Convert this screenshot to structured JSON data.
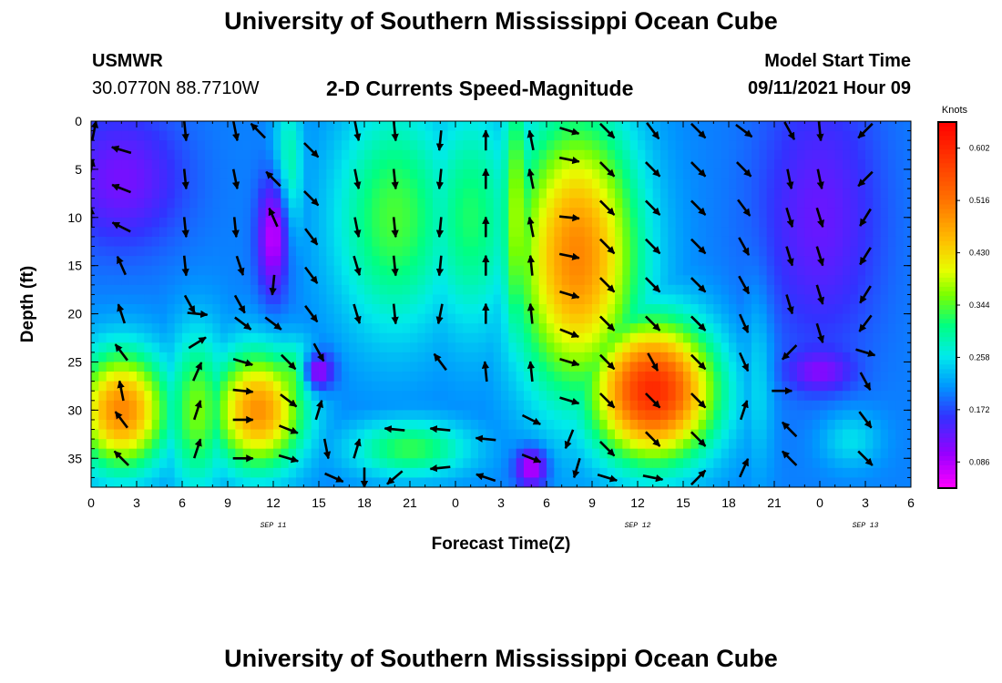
{
  "header": {
    "title": "University of Southern Mississippi Ocean Cube",
    "station": "USMWR",
    "coords": "30.0770N  88.7710W",
    "subtitle": "2-D Currents Speed-Magnitude",
    "model_start_label": "Model Start Time",
    "model_start_value": "09/11/2021 Hour 09"
  },
  "footer": {
    "title": "University of Southern Mississippi Ocean Cube"
  },
  "chart_data": {
    "type": "heatmap",
    "xlabel": "Forecast Time(Z)",
    "ylabel": "Depth (ft)",
    "x_ticks": [
      "0",
      "3",
      "6",
      "9",
      "12",
      "15",
      "18",
      "21",
      "0",
      "3",
      "6",
      "9",
      "12",
      "15",
      "18",
      "21",
      "0",
      "3",
      "6"
    ],
    "date_labels": [
      {
        "text": "SEP 11",
        "at_tick": 4
      },
      {
        "text": "SEP 12",
        "at_tick": 12
      },
      {
        "text": "SEP 13",
        "at_tick": 17
      }
    ],
    "x_range": [
      0,
      54
    ],
    "y_ticks": [
      0,
      5,
      10,
      15,
      20,
      25,
      30,
      35
    ],
    "y_range": [
      0,
      38
    ],
    "y_inverted": true,
    "colorbar": {
      "unit": "Knots",
      "ticks": [
        "0.602",
        "0.516",
        "0.430",
        "0.344",
        "0.258",
        "0.172",
        "0.086"
      ],
      "range": [
        0.043,
        0.645
      ]
    },
    "speed_field": {
      "description_units": "knots",
      "hot_spots": [
        {
          "x": 2,
          "y": 30,
          "r_x": 3,
          "r_y": 6,
          "v": 0.5
        },
        {
          "x": 11,
          "y": 30,
          "r_x": 3,
          "r_y": 6,
          "v": 0.49
        },
        {
          "x": 7,
          "y": 30,
          "r_x": 2,
          "r_y": 8,
          "v": 0.36
        },
        {
          "x": 13,
          "y": 27,
          "r_x": 2,
          "r_y": 4,
          "v": 0.36
        },
        {
          "x": 20,
          "y": 10,
          "r_x": 4,
          "r_y": 12,
          "v": 0.34
        },
        {
          "x": 25,
          "y": 10,
          "r_x": 3,
          "r_y": 12,
          "v": 0.32
        },
        {
          "x": 21,
          "y": 34,
          "r_x": 4,
          "r_y": 3,
          "v": 0.33
        },
        {
          "x": 13,
          "y": 5,
          "r_x": 1,
          "r_y": 8,
          "v": 0.3
        },
        {
          "x": 32,
          "y": 14,
          "r_x": 4,
          "r_y": 14,
          "v": 0.5
        },
        {
          "x": 37,
          "y": 28,
          "r_x": 4,
          "r_y": 7,
          "v": 0.6
        },
        {
          "x": 28,
          "y": 10,
          "r_x": 1,
          "r_y": 14,
          "v": 0.38
        },
        {
          "x": 44,
          "y": 26,
          "r_x": 1,
          "r_y": 10,
          "v": 0.26
        },
        {
          "x": 50,
          "y": 33,
          "r_x": 2,
          "r_y": 3,
          "v": 0.26
        }
      ],
      "low_spots": [
        {
          "x": 2,
          "y": 6,
          "r_x": 4,
          "r_y": 7,
          "v": 0.11
        },
        {
          "x": 12,
          "y": 12,
          "r_x": 1,
          "r_y": 6,
          "v": 0.06
        },
        {
          "x": 15,
          "y": 26,
          "r_x": 1,
          "r_y": 2,
          "v": 0.08
        },
        {
          "x": 29,
          "y": 36,
          "r_x": 1,
          "r_y": 2,
          "v": 0.06
        },
        {
          "x": 48,
          "y": 10,
          "r_x": 4,
          "r_y": 14,
          "v": 0.12
        },
        {
          "x": 48,
          "y": 26,
          "r_x": 2,
          "r_y": 2,
          "v": 0.1
        }
      ]
    },
    "vectors": [
      {
        "x": 0.2,
        "y": 1,
        "u": 0.2,
        "v": -1
      },
      {
        "x": 0,
        "y": 5,
        "u": 0.2,
        "v": -1
      },
      {
        "x": 0,
        "y": 10,
        "u": 0,
        "v": -1
      },
      {
        "x": 2,
        "y": 3,
        "u": -1,
        "v": -0.3
      },
      {
        "x": 2,
        "y": 7,
        "u": -1,
        "v": -0.4
      },
      {
        "x": 2,
        "y": 11,
        "u": -1,
        "v": -0.5
      },
      {
        "x": 2,
        "y": 15,
        "u": -0.4,
        "v": -0.9
      },
      {
        "x": 2,
        "y": 20,
        "u": -0.3,
        "v": -0.9
      },
      {
        "x": 2,
        "y": 24,
        "u": -0.6,
        "v": -0.8
      },
      {
        "x": 2,
        "y": 28,
        "u": -0.2,
        "v": -1
      },
      {
        "x": 2,
        "y": 31,
        "u": -0.6,
        "v": -0.8
      },
      {
        "x": 2,
        "y": 35,
        "u": -0.7,
        "v": -0.7
      },
      {
        "x": 6.2,
        "y": 1,
        "u": 0.1,
        "v": 1
      },
      {
        "x": 6.2,
        "y": 6,
        "u": 0.1,
        "v": 1
      },
      {
        "x": 6.2,
        "y": 11,
        "u": 0.1,
        "v": 1
      },
      {
        "x": 6.2,
        "y": 15,
        "u": 0.1,
        "v": 1
      },
      {
        "x": 6.5,
        "y": 19,
        "u": 0.5,
        "v": 0.9
      },
      {
        "x": 7,
        "y": 20,
        "u": 1,
        "v": 0.1
      },
      {
        "x": 7,
        "y": 23,
        "u": 0.8,
        "v": -0.5
      },
      {
        "x": 7,
        "y": 26,
        "u": 0.4,
        "v": -0.9
      },
      {
        "x": 7,
        "y": 30,
        "u": 0.3,
        "v": -0.9
      },
      {
        "x": 7,
        "y": 34,
        "u": 0.3,
        "v": -0.9
      },
      {
        "x": 9.5,
        "y": 1,
        "u": 0.2,
        "v": 1
      },
      {
        "x": 9.5,
        "y": 6,
        "u": 0.2,
        "v": 1
      },
      {
        "x": 9.5,
        "y": 11,
        "u": 0.1,
        "v": 1
      },
      {
        "x": 9.8,
        "y": 15,
        "u": 0.3,
        "v": 0.9
      },
      {
        "x": 9.8,
        "y": 19,
        "u": 0.5,
        "v": 0.9
      },
      {
        "x": 10,
        "y": 21,
        "u": 0.8,
        "v": 0.6
      },
      {
        "x": 10,
        "y": 25,
        "u": 1,
        "v": 0.3
      },
      {
        "x": 10,
        "y": 28,
        "u": 1,
        "v": 0.1
      },
      {
        "x": 10,
        "y": 31,
        "u": 1,
        "v": 0
      },
      {
        "x": 10,
        "y": 35,
        "u": 1,
        "v": 0
      },
      {
        "x": 11,
        "y": 1,
        "u": -0.7,
        "v": -0.7
      },
      {
        "x": 12,
        "y": 6,
        "u": -0.7,
        "v": -0.7
      },
      {
        "x": 12,
        "y": 10,
        "u": -0.4,
        "v": -0.9
      },
      {
        "x": 12,
        "y": 17,
        "u": -0.1,
        "v": 1
      },
      {
        "x": 12,
        "y": 21,
        "u": 0.8,
        "v": 0.6
      },
      {
        "x": 13,
        "y": 25,
        "u": 0.7,
        "v": 0.7
      },
      {
        "x": 13,
        "y": 29,
        "u": 0.8,
        "v": 0.6
      },
      {
        "x": 13,
        "y": 32,
        "u": 1,
        "v": 0.4
      },
      {
        "x": 13,
        "y": 35,
        "u": 1,
        "v": 0.3
      },
      {
        "x": 14.5,
        "y": 3,
        "u": 0.7,
        "v": 0.7
      },
      {
        "x": 14.5,
        "y": 8,
        "u": 0.7,
        "v": 0.7
      },
      {
        "x": 14.5,
        "y": 12,
        "u": 0.6,
        "v": 0.8
      },
      {
        "x": 14.5,
        "y": 16,
        "u": 0.6,
        "v": 0.8
      },
      {
        "x": 14.5,
        "y": 20,
        "u": 0.6,
        "v": 0.8
      },
      {
        "x": 15,
        "y": 24,
        "u": 0.5,
        "v": 0.9
      },
      {
        "x": 15,
        "y": 30,
        "u": 0.3,
        "v": -1
      },
      {
        "x": 15.5,
        "y": 34,
        "u": 0.2,
        "v": 1
      },
      {
        "x": 16,
        "y": 37,
        "u": 0.9,
        "v": 0.4
      },
      {
        "x": 17.5,
        "y": 1,
        "u": 0.2,
        "v": 1
      },
      {
        "x": 17.5,
        "y": 6,
        "u": 0.2,
        "v": 1
      },
      {
        "x": 17.5,
        "y": 11,
        "u": 0.2,
        "v": 1
      },
      {
        "x": 17.5,
        "y": 15,
        "u": 0.3,
        "v": 1
      },
      {
        "x": 17.5,
        "y": 20,
        "u": 0.3,
        "v": 1
      },
      {
        "x": 17.5,
        "y": 34,
        "u": 0.3,
        "v": -1
      },
      {
        "x": 18,
        "y": 37,
        "u": 0,
        "v": 1
      },
      {
        "x": 20,
        "y": 1,
        "u": 0.1,
        "v": 1
      },
      {
        "x": 20,
        "y": 6,
        "u": 0.1,
        "v": 1
      },
      {
        "x": 20,
        "y": 11,
        "u": 0.1,
        "v": 1
      },
      {
        "x": 20,
        "y": 15,
        "u": 0.1,
        "v": 1
      },
      {
        "x": 20,
        "y": 20,
        "u": 0.1,
        "v": 1
      },
      {
        "x": 20,
        "y": 32,
        "u": -1,
        "v": -0.1
      },
      {
        "x": 20,
        "y": 37,
        "u": -0.7,
        "v": 0.6
      },
      {
        "x": 23,
        "y": 2,
        "u": -0.1,
        "v": 1
      },
      {
        "x": 23,
        "y": 6,
        "u": -0.1,
        "v": 1
      },
      {
        "x": 23,
        "y": 11,
        "u": -0.1,
        "v": 1
      },
      {
        "x": 23,
        "y": 15,
        "u": -0.1,
        "v": 1
      },
      {
        "x": 23,
        "y": 20,
        "u": -0.2,
        "v": 1
      },
      {
        "x": 23,
        "y": 25,
        "u": -0.6,
        "v": -0.8
      },
      {
        "x": 23,
        "y": 32,
        "u": -1,
        "v": -0.1
      },
      {
        "x": 23,
        "y": 36,
        "u": -1,
        "v": 0.1
      },
      {
        "x": 26,
        "y": 2,
        "u": 0,
        "v": -1
      },
      {
        "x": 26,
        "y": 6,
        "u": 0,
        "v": -1
      },
      {
        "x": 26,
        "y": 11,
        "u": 0,
        "v": -1
      },
      {
        "x": 26,
        "y": 15,
        "u": 0,
        "v": -1
      },
      {
        "x": 26,
        "y": 20,
        "u": 0,
        "v": -1
      },
      {
        "x": 26,
        "y": 26,
        "u": -0.1,
        "v": -1
      },
      {
        "x": 26,
        "y": 33,
        "u": -1,
        "v": -0.1
      },
      {
        "x": 26,
        "y": 37,
        "u": -0.9,
        "v": -0.3
      },
      {
        "x": 29,
        "y": 2,
        "u": -0.2,
        "v": -1
      },
      {
        "x": 29,
        "y": 6,
        "u": -0.2,
        "v": -1
      },
      {
        "x": 29,
        "y": 11,
        "u": -0.2,
        "v": -1
      },
      {
        "x": 29,
        "y": 15,
        "u": -0.1,
        "v": -1
      },
      {
        "x": 29,
        "y": 20,
        "u": -0.1,
        "v": -1
      },
      {
        "x": 29,
        "y": 26,
        "u": -0.1,
        "v": -1
      },
      {
        "x": 29,
        "y": 31,
        "u": 1,
        "v": 0.5
      },
      {
        "x": 29,
        "y": 35,
        "u": 1,
        "v": 0.4
      },
      {
        "x": 31.5,
        "y": 1,
        "u": 1,
        "v": 0.3
      },
      {
        "x": 31.5,
        "y": 4,
        "u": 1,
        "v": 0.2
      },
      {
        "x": 31.5,
        "y": 10,
        "u": 1,
        "v": 0.1
      },
      {
        "x": 31.5,
        "y": 14,
        "u": 1,
        "v": 0.2
      },
      {
        "x": 31.5,
        "y": 18,
        "u": 1,
        "v": 0.3
      },
      {
        "x": 31.5,
        "y": 22,
        "u": 1,
        "v": 0.4
      },
      {
        "x": 31.5,
        "y": 25,
        "u": 1,
        "v": 0.3
      },
      {
        "x": 31.5,
        "y": 29,
        "u": 1,
        "v": 0.3
      },
      {
        "x": 31.5,
        "y": 33,
        "u": -0.4,
        "v": 1
      },
      {
        "x": 32,
        "y": 36,
        "u": -0.3,
        "v": 1
      },
      {
        "x": 34,
        "y": 1,
        "u": 0.7,
        "v": 0.7
      },
      {
        "x": 34,
        "y": 5,
        "u": 0.7,
        "v": 0.7
      },
      {
        "x": 34,
        "y": 9,
        "u": 0.7,
        "v": 0.7
      },
      {
        "x": 34,
        "y": 13,
        "u": 0.7,
        "v": 0.7
      },
      {
        "x": 34,
        "y": 17,
        "u": 0.7,
        "v": 0.7
      },
      {
        "x": 34,
        "y": 21,
        "u": 0.7,
        "v": 0.7
      },
      {
        "x": 34,
        "y": 25,
        "u": 0.7,
        "v": 0.7
      },
      {
        "x": 34,
        "y": 29,
        "u": 0.7,
        "v": 0.7
      },
      {
        "x": 34,
        "y": 34,
        "u": 0.7,
        "v": 0.7
      },
      {
        "x": 34,
        "y": 37,
        "u": 1,
        "v": 0.3
      },
      {
        "x": 37,
        "y": 1,
        "u": 0.6,
        "v": 0.8
      },
      {
        "x": 37,
        "y": 5,
        "u": 0.7,
        "v": 0.7
      },
      {
        "x": 37,
        "y": 9,
        "u": 0.7,
        "v": 0.7
      },
      {
        "x": 37,
        "y": 13,
        "u": 0.7,
        "v": 0.7
      },
      {
        "x": 37,
        "y": 17,
        "u": 0.7,
        "v": 0.7
      },
      {
        "x": 37,
        "y": 21,
        "u": 0.7,
        "v": 0.7
      },
      {
        "x": 37,
        "y": 25,
        "u": 0.5,
        "v": 0.9
      },
      {
        "x": 37,
        "y": 29,
        "u": 0.7,
        "v": 0.7
      },
      {
        "x": 37,
        "y": 33,
        "u": 0.7,
        "v": 0.7
      },
      {
        "x": 37,
        "y": 37,
        "u": 1,
        "v": 0.2
      },
      {
        "x": 40,
        "y": 1,
        "u": 0.7,
        "v": 0.7
      },
      {
        "x": 40,
        "y": 5,
        "u": 0.7,
        "v": 0.7
      },
      {
        "x": 40,
        "y": 9,
        "u": 0.7,
        "v": 0.7
      },
      {
        "x": 40,
        "y": 13,
        "u": 0.7,
        "v": 0.7
      },
      {
        "x": 40,
        "y": 17,
        "u": 0.7,
        "v": 0.7
      },
      {
        "x": 40,
        "y": 21,
        "u": 0.7,
        "v": 0.7
      },
      {
        "x": 40,
        "y": 25,
        "u": 0.7,
        "v": 0.7
      },
      {
        "x": 40,
        "y": 29,
        "u": 0.7,
        "v": 0.7
      },
      {
        "x": 40,
        "y": 33,
        "u": 0.7,
        "v": 0.7
      },
      {
        "x": 40,
        "y": 37,
        "u": 0.7,
        "v": -0.7
      },
      {
        "x": 43,
        "y": 1,
        "u": 0.8,
        "v": 0.6
      },
      {
        "x": 43,
        "y": 5,
        "u": 0.7,
        "v": 0.7
      },
      {
        "x": 43,
        "y": 9,
        "u": 0.6,
        "v": 0.8
      },
      {
        "x": 43,
        "y": 13,
        "u": 0.5,
        "v": 0.9
      },
      {
        "x": 43,
        "y": 17,
        "u": 0.5,
        "v": 0.9
      },
      {
        "x": 43,
        "y": 21,
        "u": 0.4,
        "v": 0.9
      },
      {
        "x": 43,
        "y": 25,
        "u": 0.4,
        "v": 0.9
      },
      {
        "x": 43,
        "y": 30,
        "u": 0.3,
        "v": -0.9
      },
      {
        "x": 43,
        "y": 36,
        "u": 0.4,
        "v": -0.9
      },
      {
        "x": 46,
        "y": 1,
        "u": 0.5,
        "v": 0.9
      },
      {
        "x": 46,
        "y": 6,
        "u": 0.2,
        "v": 1
      },
      {
        "x": 46,
        "y": 10,
        "u": 0.3,
        "v": 1
      },
      {
        "x": 46,
        "y": 14,
        "u": 0.3,
        "v": 1
      },
      {
        "x": 46,
        "y": 19,
        "u": 0.3,
        "v": 1
      },
      {
        "x": 45.5,
        "y": 28,
        "u": 1,
        "v": 0
      },
      {
        "x": 46,
        "y": 24,
        "u": -0.7,
        "v": 0.7
      },
      {
        "x": 46,
        "y": 32,
        "u": -0.7,
        "v": -0.7
      },
      {
        "x": 46,
        "y": 35,
        "u": -0.7,
        "v": -0.7
      },
      {
        "x": 48,
        "y": 1,
        "u": 0.1,
        "v": 1
      },
      {
        "x": 48,
        "y": 6,
        "u": 0.2,
        "v": 1
      },
      {
        "x": 48,
        "y": 10,
        "u": 0.3,
        "v": 1
      },
      {
        "x": 48,
        "y": 14,
        "u": 0.3,
        "v": 1
      },
      {
        "x": 48,
        "y": 18,
        "u": 0.3,
        "v": 1
      },
      {
        "x": 48,
        "y": 22,
        "u": 0.3,
        "v": 1
      },
      {
        "x": 51,
        "y": 1,
        "u": -0.7,
        "v": 0.7
      },
      {
        "x": 51,
        "y": 6,
        "u": -0.7,
        "v": 0.7
      },
      {
        "x": 51,
        "y": 10,
        "u": -0.5,
        "v": 0.8
      },
      {
        "x": 51,
        "y": 14,
        "u": -0.5,
        "v": 0.8
      },
      {
        "x": 51,
        "y": 18,
        "u": -0.5,
        "v": 0.8
      },
      {
        "x": 51,
        "y": 21,
        "u": -0.6,
        "v": 0.8
      },
      {
        "x": 51,
        "y": 24,
        "u": 1,
        "v": 0.3
      },
      {
        "x": 51,
        "y": 27,
        "u": 0.5,
        "v": 0.9
      },
      {
        "x": 51,
        "y": 31,
        "u": 0.6,
        "v": 0.8
      },
      {
        "x": 51,
        "y": 35,
        "u": 0.7,
        "v": 0.7
      }
    ]
  }
}
